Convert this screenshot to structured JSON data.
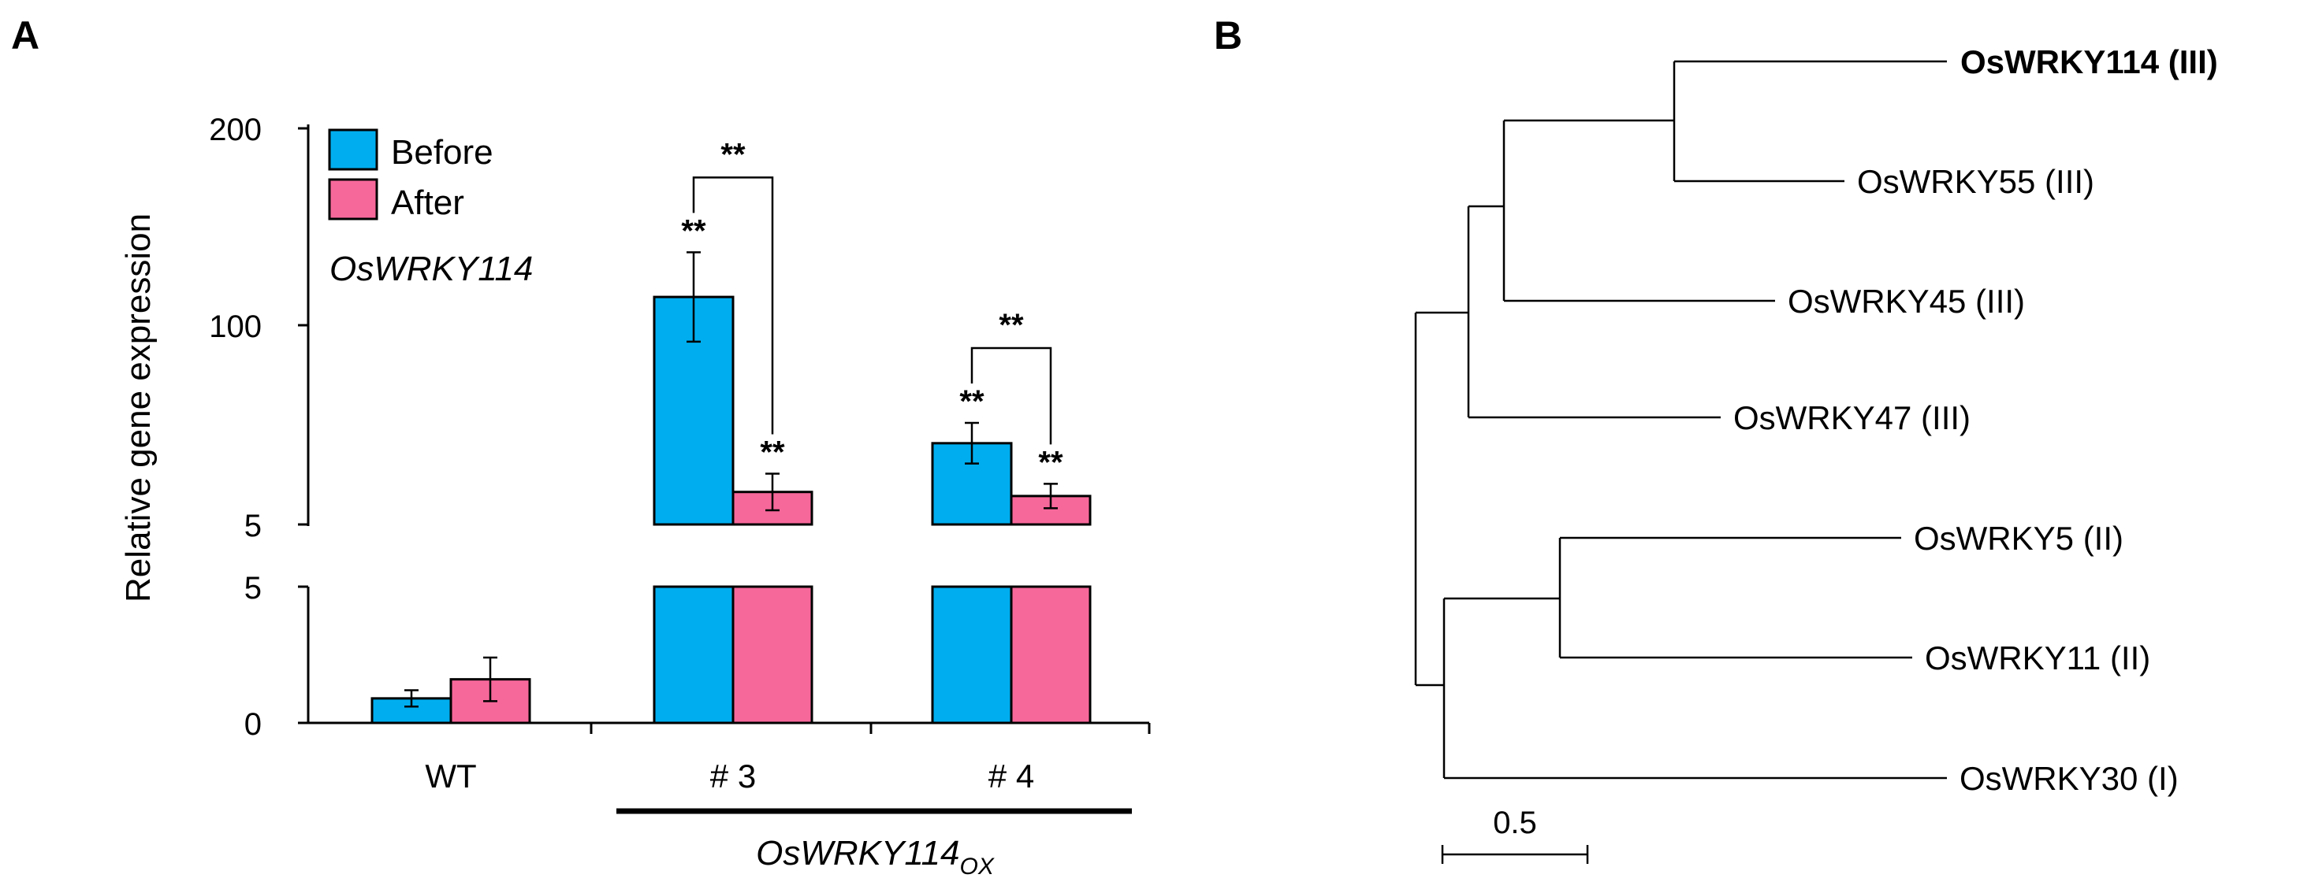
{
  "panel_a_label": "A",
  "panel_b_label": "B",
  "chart_data": [
    {
      "type": "bar",
      "panel": "A",
      "ylabel": "Relative gene expression",
      "inset_title": "OsWRKY114",
      "categories": [
        "WT",
        "# 3",
        "# 4"
      ],
      "group_label_main": "OsWRKY114",
      "group_label_sub": "OX",
      "broken_axis": {
        "upper": {
          "ylim": [
            5,
            200
          ],
          "ticks": [
            "5",
            "100",
            "200"
          ]
        },
        "lower": {
          "ylim": [
            0,
            5
          ],
          "ticks": [
            "0",
            "5"
          ]
        }
      },
      "series": [
        {
          "name": "Before",
          "color": "#00AEEF",
          "values": [
            0.9,
            117,
            45
          ],
          "errors": [
            0.3,
            22,
            10
          ],
          "sig": [
            "",
            "**",
            "**"
          ]
        },
        {
          "name": "After",
          "color": "#F7689A",
          "values": [
            1.6,
            21,
            19
          ],
          "errors": [
            0.8,
            9,
            6
          ],
          "sig": [
            "",
            "**",
            "**"
          ]
        }
      ],
      "comparisons": [
        {
          "category": "# 3",
          "label": "**"
        },
        {
          "category": "# 4",
          "label": "**"
        }
      ]
    },
    {
      "type": "tree",
      "panel": "B",
      "scale_bar": "0.5",
      "leaves": [
        {
          "label": "OsWRKY114 (III)",
          "highlight": true,
          "color": "#E8141A"
        },
        {
          "label": "OsWRKY55 (III)",
          "highlight": false
        },
        {
          "label": "OsWRKY45 (III)",
          "highlight": false
        },
        {
          "label": "OsWRKY47 (III)",
          "highlight": false
        },
        {
          "label": "OsWRKY5 (II)",
          "highlight": false
        },
        {
          "label": "OsWRKY11 (II)",
          "highlight": false
        },
        {
          "label": "OsWRKY30 (I)",
          "highlight": false
        }
      ]
    }
  ]
}
